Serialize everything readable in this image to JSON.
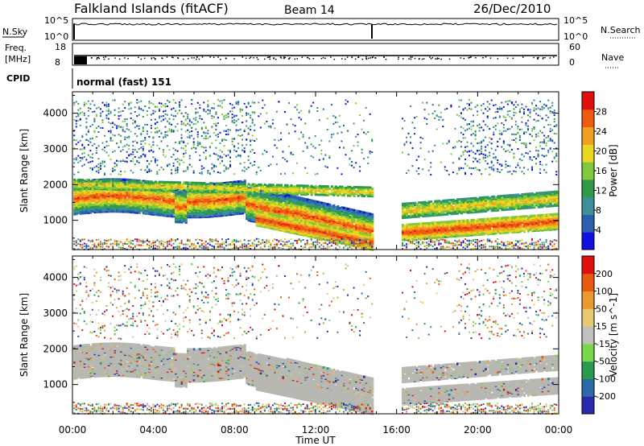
{
  "header": {
    "station": "Falkland Islands (fitACF)",
    "beam": "Beam 14",
    "date": "26/Dec/2010"
  },
  "nsky_panel": {
    "left_label": "N.Sky",
    "left_ticks": [
      "10^5",
      "10^0"
    ],
    "right_label": "N.Search",
    "right_ticks": [
      "10^5",
      "10^0"
    ]
  },
  "freq_panel": {
    "left_label_line1": "Freq.",
    "left_label_line2": "[MHz]",
    "left_ticks": [
      "18",
      "8"
    ],
    "right_label": "Nave",
    "right_ticks": [
      "60",
      "0"
    ]
  },
  "cpid": {
    "label": "CPID",
    "value": "normal (fast) 151"
  },
  "chart_data": [
    {
      "type": "heatmap",
      "name": "Power",
      "ylabel": "Slant Range [km]",
      "ylim": [
        180,
        4600
      ],
      "yticks": [
        1000,
        2000,
        3000,
        4000
      ],
      "xlabel": "Time UT",
      "xlim": [
        "00:00",
        "24:00"
      ],
      "xticks": [
        "00:00",
        "04:00",
        "08:00",
        "12:00",
        "16:00",
        "20:00",
        "00:00"
      ],
      "colorbar": {
        "label": "Power [dB]",
        "range": [
          0,
          32
        ],
        "ticks": [
          4,
          8,
          12,
          16,
          20,
          24,
          28
        ]
      }
    },
    {
      "type": "heatmap",
      "name": "Velocity",
      "ylabel": "Slant Range [km]",
      "ylim": [
        180,
        4600
      ],
      "yticks": [
        1000,
        2000,
        3000,
        4000
      ],
      "xlabel": "Time UT",
      "xlim": [
        "00:00",
        "24:00"
      ],
      "xticks": [
        "00:00",
        "04:00",
        "08:00",
        "12:00",
        "16:00",
        "20:00",
        "00:00"
      ],
      "colorbar": {
        "label": "Velocity [m s^-1]",
        "ticks": [
          200,
          100,
          50,
          15,
          -15,
          -50,
          -100,
          -200
        ]
      }
    }
  ],
  "colors": {
    "power_scale": [
      "#1010e0",
      "#2a5fb0",
      "#3d8f9a",
      "#2f9a4a",
      "#7fc93a",
      "#e8d820",
      "#f0a020",
      "#f05a10",
      "#e01010"
    ],
    "velocity_scale": [
      "#2a2ab0",
      "#2a6aa8",
      "#2a9a50",
      "#7ad84a",
      "#c0c0bc",
      "#e8c870",
      "#e89a30",
      "#e85a10",
      "#e01010"
    ],
    "ground_scatter": "#b8b8b2"
  }
}
